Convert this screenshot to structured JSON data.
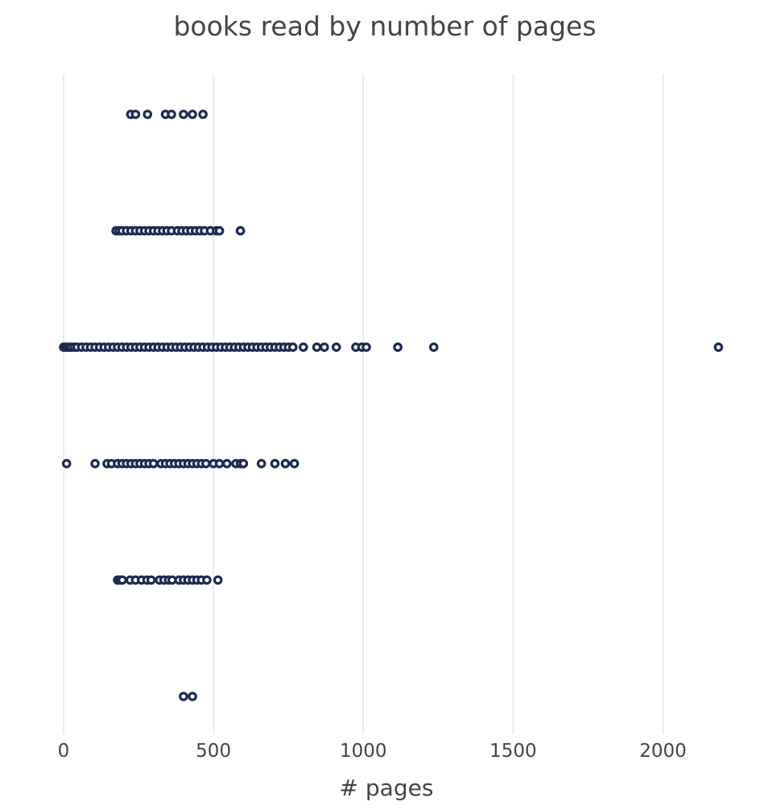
{
  "chart_data": {
    "type": "scatter",
    "title": "books read by number of pages",
    "xlabel": "# pages",
    "ylabel": "",
    "xlim": [
      0,
      2200
    ],
    "x_ticks": [
      "0",
      "500",
      "1000",
      "1500",
      "2000"
    ],
    "x_tick_values": [
      0,
      500,
      1000,
      1500,
      2000
    ],
    "grid": true,
    "legend": "none",
    "marker_color": "#1c2a52",
    "series": [
      {
        "values": [
          224,
          240,
          280,
          340,
          360,
          400,
          430,
          465
        ]
      },
      {
        "values": [
          175,
          185,
          195,
          210,
          225,
          240,
          255,
          270,
          285,
          300,
          315,
          330,
          345,
          360,
          380,
          395,
          410,
          425,
          440,
          455,
          470,
          490,
          510,
          520,
          590
        ]
      },
      {
        "values": [
          0,
          5,
          10,
          18,
          25,
          35,
          45,
          60,
          75,
          90,
          105,
          120,
          135,
          150,
          165,
          180,
          195,
          210,
          225,
          240,
          255,
          270,
          285,
          300,
          315,
          330,
          345,
          360,
          375,
          390,
          405,
          420,
          435,
          450,
          465,
          480,
          495,
          510,
          525,
          540,
          555,
          570,
          585,
          600,
          615,
          630,
          645,
          660,
          675,
          690,
          705,
          720,
          735,
          750,
          765,
          800,
          845,
          870,
          910,
          975,
          995,
          1010,
          1115,
          1235,
          2185
        ]
      },
      {
        "values": [
          10,
          105,
          145,
          160,
          180,
          195,
          210,
          225,
          240,
          255,
          270,
          285,
          300,
          325,
          340,
          355,
          370,
          385,
          400,
          415,
          430,
          445,
          460,
          475,
          500,
          520,
          545,
          575,
          590,
          600,
          660,
          705,
          740,
          770
        ]
      },
      {
        "values": [
          180,
          188,
          196,
          222,
          240,
          260,
          278,
          292,
          320,
          335,
          350,
          362,
          385,
          400,
          415,
          430,
          445,
          460,
          478,
          515
        ]
      },
      {
        "values": [
          400,
          430
        ]
      }
    ]
  }
}
